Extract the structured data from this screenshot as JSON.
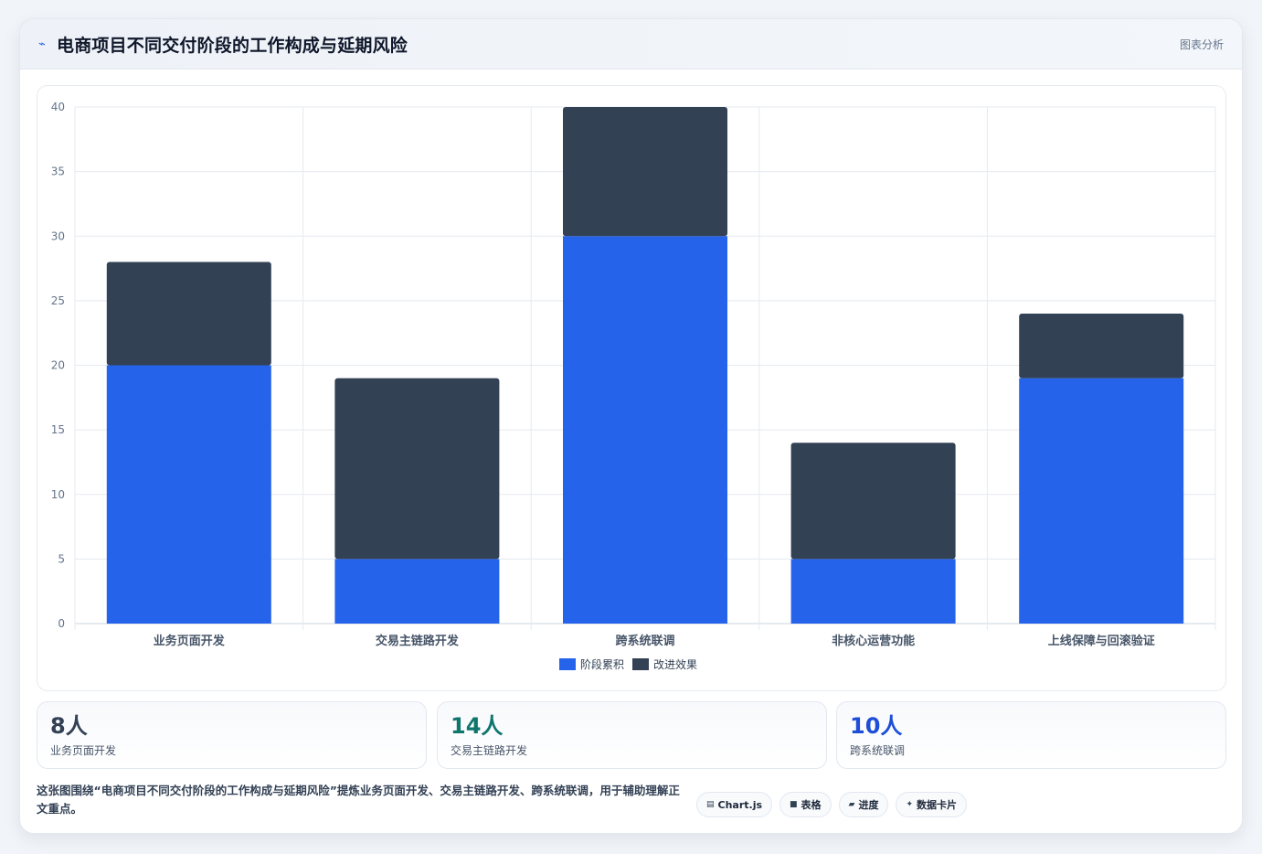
{
  "header": {
    "title": "电商项目不同交付阶段的工作构成与延期风险",
    "tag": "图表分析",
    "icon": "trend-line-icon"
  },
  "chart_data": {
    "type": "bar",
    "stacked": true,
    "categories": [
      "业务页面开发",
      "交易主链路开发",
      "跨系统联调",
      "非核心运营功能",
      "上线保障与回滚验证"
    ],
    "series": [
      {
        "name": "阶段累积",
        "values": [
          20,
          5,
          30,
          5,
          19
        ],
        "color": "#2563eb"
      },
      {
        "name": "改进效果",
        "values": [
          8,
          14,
          10,
          9,
          5
        ],
        "color": "#334155"
      }
    ],
    "ylim": [
      0,
      40
    ],
    "yticks": [
      0,
      5,
      10,
      15,
      20,
      25,
      30,
      35,
      40
    ],
    "grid": true,
    "legend_position": "bottom"
  },
  "stats": [
    {
      "value": "8人",
      "label": "业务页面开发",
      "color": "#334155"
    },
    {
      "value": "14人",
      "label": "交易主链路开发",
      "color": "#0f766e"
    },
    {
      "value": "10人",
      "label": "跨系统联调",
      "color": "#1d4ed8"
    }
  ],
  "footer": {
    "text": "这张图围绕“电商项目不同交付阶段的工作构成与延期风险”提炼业务页面开发、交易主链路开发、跨系统联调，用于辅助理解正文重点。",
    "chips": [
      {
        "label": "Chart.js",
        "icon": "chart-icon",
        "glyph": "▤"
      },
      {
        "label": "表格",
        "icon": "table-icon",
        "glyph": "■"
      },
      {
        "label": "进度",
        "icon": "progress-icon",
        "glyph": "▰"
      },
      {
        "label": "数据卡片",
        "icon": "sparkle-icon",
        "glyph": "✦"
      }
    ]
  }
}
